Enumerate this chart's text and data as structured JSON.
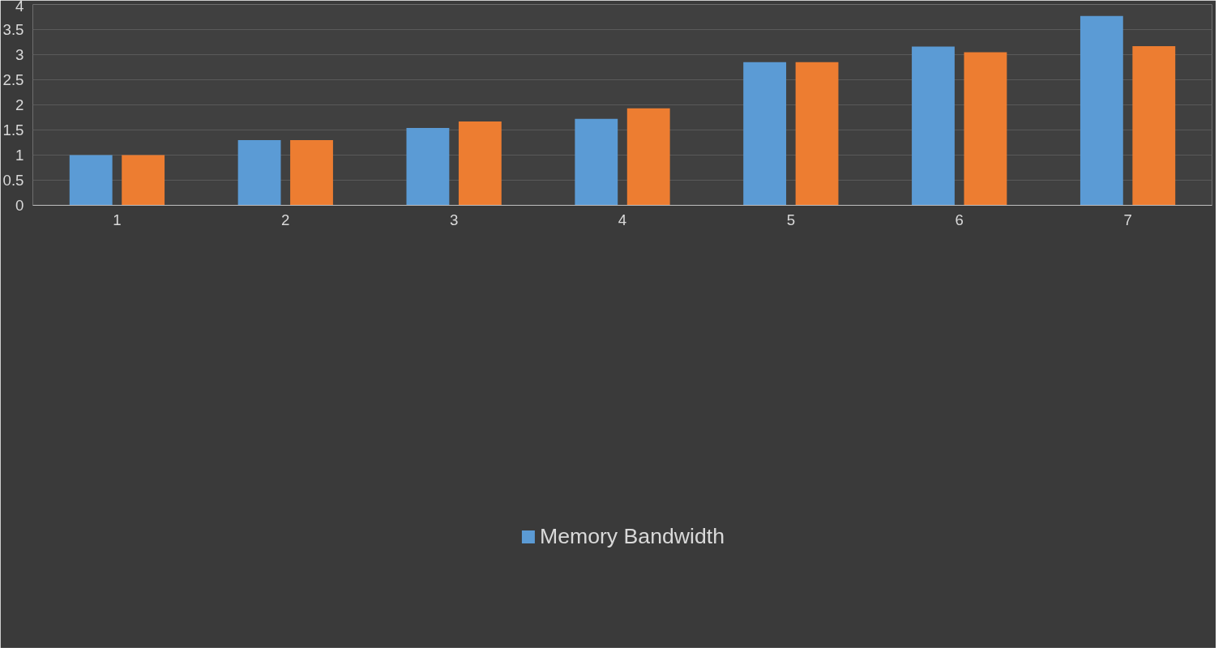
{
  "chart_data": {
    "type": "bar",
    "categories": [
      "1",
      "2",
      "3",
      "4",
      "5",
      "6",
      "7"
    ],
    "series": [
      {
        "name": "Memory Bandwidth",
        "color": "#5b9bd5",
        "values": [
          1.0,
          1.3,
          1.54,
          1.72,
          2.85,
          3.16,
          3.77
        ]
      },
      {
        "color": "#ed7d31",
        "values": [
          1.0,
          1.3,
          1.67,
          1.93,
          2.85,
          3.05,
          3.17
        ]
      }
    ],
    "ylim": [
      0,
      4
    ],
    "yticks": [
      0,
      0.5,
      1,
      1.5,
      2,
      2.5,
      3,
      3.5,
      4
    ],
    "grid": "y",
    "legend": "bottom"
  }
}
